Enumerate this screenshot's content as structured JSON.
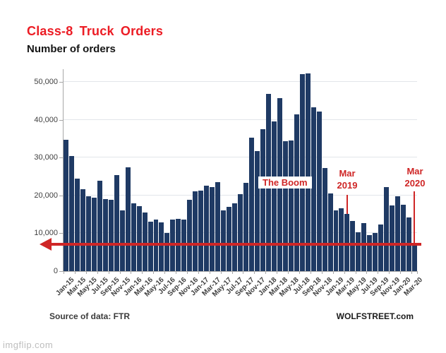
{
  "header": {
    "title": "Class-8 Truck Orders",
    "subtitle": "Number of orders"
  },
  "annotations": {
    "boom": "The Boom",
    "mar2019": [
      "Mar",
      "2019"
    ],
    "mar2020": [
      "Mar",
      "2020"
    ]
  },
  "footer": {
    "source": "Source of data: FTR",
    "brand": "WOLFSTREET.com"
  },
  "watermark": "imgflip.com",
  "colors": {
    "bar": "#1f3a64",
    "title_red": "#ec1c24",
    "annotation_red": "#cf2626",
    "grid": "#e2e6ea",
    "axis": "#a6a6a6"
  },
  "chart_data": {
    "type": "bar",
    "title": "Class-8 Truck Orders",
    "ylabel": "Number of orders",
    "grid": true,
    "legend": false,
    "ylim": [
      0,
      50000
    ],
    "y_ticks": [
      0,
      10000,
      20000,
      30000,
      40000,
      50000
    ],
    "y_tick_labels": [
      "0",
      "10,000",
      "20,000",
      "30,000",
      "40,000",
      "50,000"
    ],
    "x": [
      "Jan-15",
      "Feb-15",
      "Mar-15",
      "Apr-15",
      "May-15",
      "Jun-15",
      "Jul-15",
      "Aug-15",
      "Sep-15",
      "Oct-15",
      "Nov-15",
      "Dec-15",
      "Jan-16",
      "Feb-16",
      "Mar-16",
      "Apr-16",
      "May-16",
      "Jun-16",
      "Jul-16",
      "Aug-16",
      "Sep-16",
      "Oct-16",
      "Nov-16",
      "Dec-16",
      "Jan-17",
      "Feb-17",
      "Mar-17",
      "Apr-17",
      "May-17",
      "Jun-17",
      "Jul-17",
      "Aug-17",
      "Sep-17",
      "Oct-17",
      "Nov-17",
      "Dec-17",
      "Jan-18",
      "Feb-18",
      "Mar-18",
      "Apr-18",
      "May-18",
      "Jun-18",
      "Jul-18",
      "Aug-18",
      "Sep-18",
      "Oct-18",
      "Nov-18",
      "Dec-18",
      "Jan-19",
      "Feb-19",
      "Mar-19",
      "Apr-19",
      "May-19",
      "Jun-19",
      "Jul-19",
      "Aug-19",
      "Sep-19",
      "Oct-19",
      "Nov-19",
      "Dec-19",
      "Jan-20",
      "Feb-20",
      "Mar-20"
    ],
    "values": [
      34700,
      30400,
      24500,
      21600,
      19800,
      19400,
      23800,
      19100,
      18800,
      25400,
      16000,
      27500,
      17900,
      17200,
      15500,
      13000,
      13600,
      12900,
      10100,
      13700,
      13800,
      13600,
      18900,
      21000,
      21300,
      22600,
      22200,
      23500,
      16000,
      17000,
      18000,
      20300,
      23300,
      35300,
      31800,
      37500,
      46900,
      39600,
      45800,
      34300,
      34500,
      41500,
      52000,
      52300,
      43300,
      42100,
      27300,
      20600,
      16000,
      16700,
      15100,
      13200,
      10200,
      12600,
      9500,
      10100,
      12300,
      22200,
      17400,
      19800,
      17500,
      14100,
      7100
    ],
    "x_tick_labels": [
      "Jan-15",
      "Mar-15",
      "May-15",
      "Jul-15",
      "Sep-15",
      "Nov-15",
      "Jan-16",
      "Mar-16",
      "May-16",
      "Jul-16",
      "Sep-16",
      "Nov-16",
      "Jan-17",
      "Mar-17",
      "May-17",
      "Jul-17",
      "Sep-17",
      "Nov-17",
      "Jan-18",
      "Mar-18",
      "May-18",
      "Jul-18",
      "Sep-18",
      "Nov-18",
      "Jan-19",
      "Mar-19",
      "May-19",
      "Jul-19",
      "Sep-19",
      "Nov-19",
      "Jan-20",
      "Mar-20"
    ],
    "arrow_level": 7100,
    "annotated_months": [
      "Mar-19",
      "Mar-20"
    ]
  }
}
